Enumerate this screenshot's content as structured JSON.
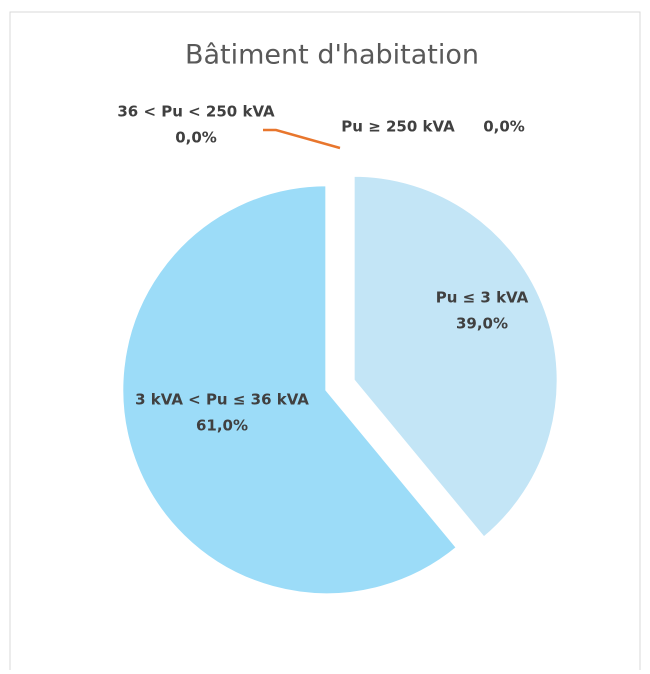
{
  "chart_data": {
    "type": "pie",
    "title": "Bâtiment d'habitation",
    "categories": [
      "Pu ≤ 3 kVA",
      "3 kVA < Pu ≤ 36 kVA",
      "36 < Pu < 250 kVA",
      "Pu ≥ 250 kVA"
    ],
    "values": [
      39.0,
      61.0,
      0.0,
      0.0
    ],
    "value_labels": [
      "39,0%",
      "61,0%",
      "0,0%",
      "0,0%"
    ],
    "colors": [
      "#c3e5f6",
      "#9cdcf8",
      "#e8762d",
      "#8fb8de"
    ],
    "leader_color": "#e8762d"
  }
}
